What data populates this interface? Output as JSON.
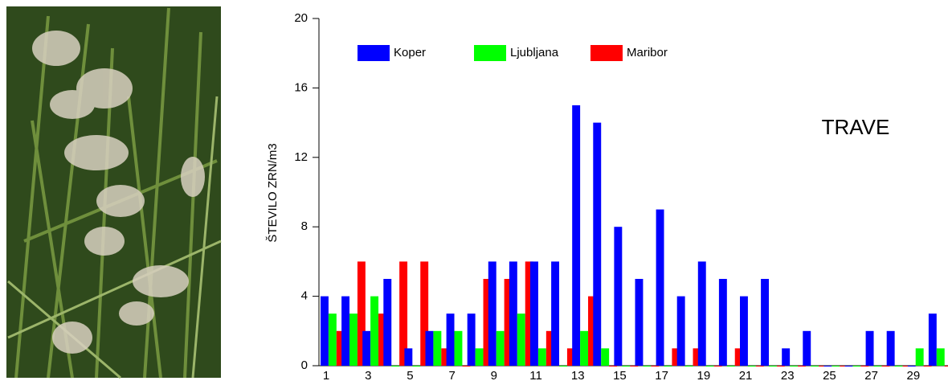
{
  "chart_data": {
    "type": "bar",
    "title": "TRAVE",
    "ylabel": "ŠTEVILO ZRN/m3",
    "categories": [
      1,
      null,
      3,
      null,
      5,
      null,
      7,
      null,
      9,
      null,
      11,
      null,
      13,
      null,
      15,
      null,
      17,
      null,
      19,
      null,
      21,
      null,
      23,
      null,
      25,
      null,
      27,
      null,
      29,
      null
    ],
    "series": [
      {
        "name": "Koper",
        "color": "#0000ff",
        "values": [
          4,
          4,
          2,
          5,
          1,
          2,
          3,
          3,
          6,
          6,
          6,
          6,
          15,
          14,
          8,
          5,
          9,
          4,
          6,
          5,
          4,
          5,
          1,
          2,
          0,
          0,
          2,
          2,
          0,
          3
        ]
      },
      {
        "name": "Ljubljana",
        "color": "#00ff00",
        "values": [
          3,
          3,
          4,
          0,
          0,
          2,
          2,
          1,
          2,
          3,
          1,
          0,
          2,
          1,
          0,
          0,
          0,
          0,
          0,
          0,
          0,
          0,
          0,
          0,
          0,
          0,
          0,
          0,
          1,
          1
        ]
      },
      {
        "name": "Maribor",
        "color": "#ff0000",
        "values": [
          2,
          6,
          3,
          6,
          6,
          1,
          0,
          5,
          5,
          6,
          2,
          1,
          4,
          0,
          0,
          0,
          1,
          1,
          0,
          1,
          0,
          0,
          0,
          0,
          0,
          0,
          0,
          0,
          0,
          0
        ]
      }
    ],
    "ylim": [
      0,
      20
    ],
    "yticks": [
      0,
      4,
      8,
      12,
      16,
      20
    ],
    "grid": false,
    "legend": "top"
  }
}
